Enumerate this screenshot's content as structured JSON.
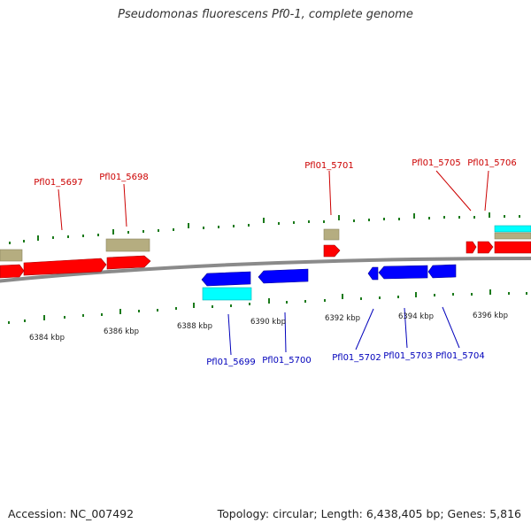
{
  "title": "Pseudomonas fluorescens Pf0-1, complete genome",
  "footer": {
    "accession": "Accession: NC_007492",
    "topology": "Topology: circular; Length: 6,438,405 bp; Genes: 5,816"
  },
  "colors": {
    "forward_gene": "#ff0000",
    "reverse_gene": "#0000ff",
    "forward_label": "#cc0000",
    "reverse_label": "#0000bb",
    "rna_forward": "#b5ad80",
    "rna_reverse": "#00ffff",
    "tick": "#1b7a1b",
    "backbone": "#888888"
  },
  "kbp_labels": [
    "6384 kbp",
    "6386 kbp",
    "6388 kbp",
    "6390 kbp",
    "6392 kbp",
    "6394 kbp",
    "6396 kbp"
  ],
  "forward_gene_labels": [
    "Pfl01_5697",
    "Pfl01_5698",
    "Pfl01_5701",
    "Pfl01_5705",
    "Pfl01_5706"
  ],
  "reverse_gene_labels": [
    "Pfl01_5699",
    "Pfl01_5700",
    "Pfl01_5702",
    "Pfl01_5703",
    "Pfl01_5704"
  ]
}
